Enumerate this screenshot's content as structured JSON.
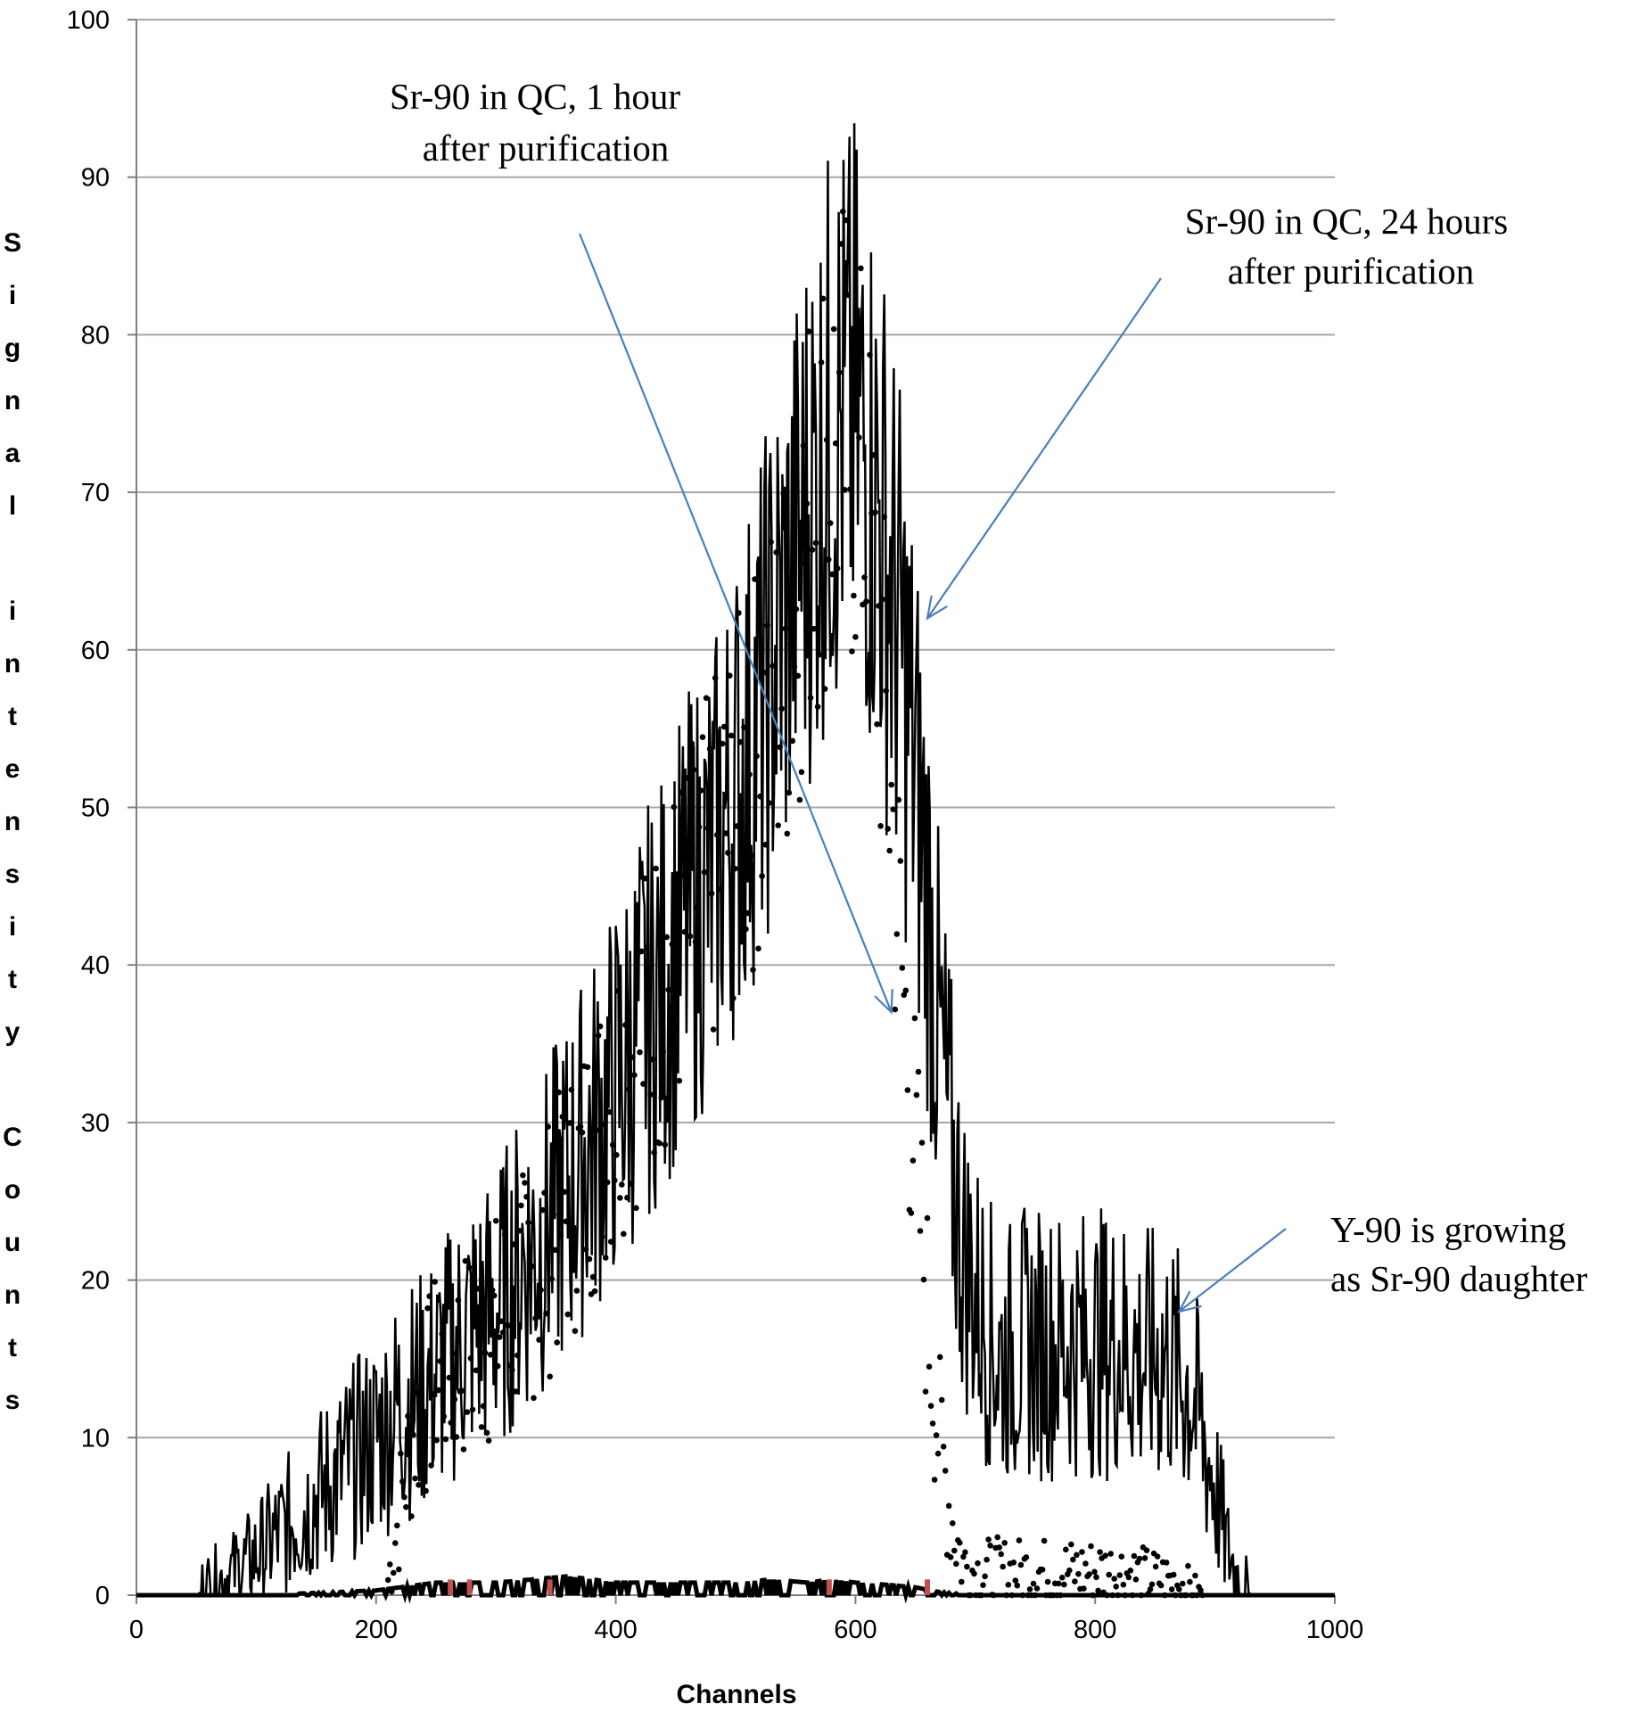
{
  "chart_data": {
    "type": "line",
    "title": "",
    "xlabel": "Channels",
    "ylabel": "Signal intensity Counts",
    "xlim": [
      0,
      1000
    ],
    "ylim": [
      0,
      100
    ],
    "xticks": [
      0,
      200,
      400,
      600,
      800,
      1000
    ],
    "yticks": [
      0,
      10,
      20,
      30,
      40,
      50,
      60,
      70,
      80,
      90,
      100
    ],
    "grid": "horizontal",
    "legend": "none",
    "colors": {
      "grid": "#a6a6a6",
      "axis": "#808080",
      "series": "#000000",
      "arrow": "#4a7ebb",
      "baseline_marks": "#c0504d"
    },
    "series": [
      {
        "style": "dotted",
        "x": [
          210,
          230,
          250,
          270,
          290,
          310,
          330,
          350,
          370,
          390,
          410,
          430,
          450,
          470,
          490,
          510,
          530,
          550,
          560,
          570,
          580,
          590,
          600,
          610,
          620,
          630,
          640,
          650,
          660,
          670,
          680,
          690,
          700,
          720,
          740,
          760,
          780,
          800,
          820,
          840,
          860,
          880,
          890
        ],
        "y": [
          1,
          10,
          14,
          15,
          16,
          18,
          20,
          23,
          26,
          30,
          34,
          37,
          41,
          44,
          48,
          51,
          56,
          62,
          68,
          71,
          73,
          74,
          72,
          68,
          60,
          50,
          38,
          28,
          18,
          10,
          5,
          2,
          1.5,
          1.5,
          1.5,
          1.5,
          1.5,
          1.5,
          1.5,
          1.2,
          1.0,
          0.5,
          0
        ]
      },
      {
        "style": "solid",
        "x": [
          0,
          50,
          60,
          80,
          100,
          120,
          140,
          160,
          180,
          200,
          220,
          240,
          260,
          280,
          300,
          320,
          340,
          360,
          380,
          400,
          420,
          440,
          460,
          480,
          500,
          520,
          540,
          560,
          580,
          600,
          620,
          640,
          660,
          670,
          680,
          690,
          700,
          720,
          740,
          760,
          780,
          800,
          820,
          840,
          860,
          880,
          890,
          900,
          910,
          920,
          930,
          1000
        ],
        "y": [
          0,
          0,
          0.5,
          1.5,
          2.5,
          4,
          5.5,
          7,
          8.5,
          10,
          12,
          13,
          15,
          17,
          18,
          21,
          23,
          26,
          29,
          32,
          36,
          39,
          43,
          46,
          51,
          56,
          62,
          69,
          74,
          75,
          69,
          59,
          45,
          35,
          28,
          22,
          19,
          15,
          16,
          16,
          16,
          16,
          16,
          15,
          15,
          13,
          10,
          7,
          3,
          1,
          0,
          0
        ]
      },
      {
        "style": "baseline",
        "x": [
          0,
          100,
          200,
          250,
          300,
          360,
          400,
          450,
          500,
          530,
          560,
          580,
          600,
          620,
          650,
          670,
          700,
          1000
        ],
        "y": [
          0,
          0,
          0.3,
          0.8,
          0.8,
          1.2,
          0.8,
          0.8,
          0.8,
          1.0,
          0.8,
          1.0,
          0.8,
          0.7,
          0.5,
          0.2,
          0,
          0
        ]
      }
    ],
    "annotations": [
      {
        "text_lines": [
          "Sr-90 in QC, 1 hour",
          "after purification"
        ],
        "points_to": [
          630,
          37
        ]
      },
      {
        "text_lines": [
          "Sr-90 in QC, 24 hours",
          "after purification"
        ],
        "points_to": [
          660,
          62
        ]
      },
      {
        "text_lines": [
          "Y-90 is growing",
          "as Sr-90 daughter"
        ],
        "points_to": [
          870,
          18
        ]
      }
    ]
  }
}
